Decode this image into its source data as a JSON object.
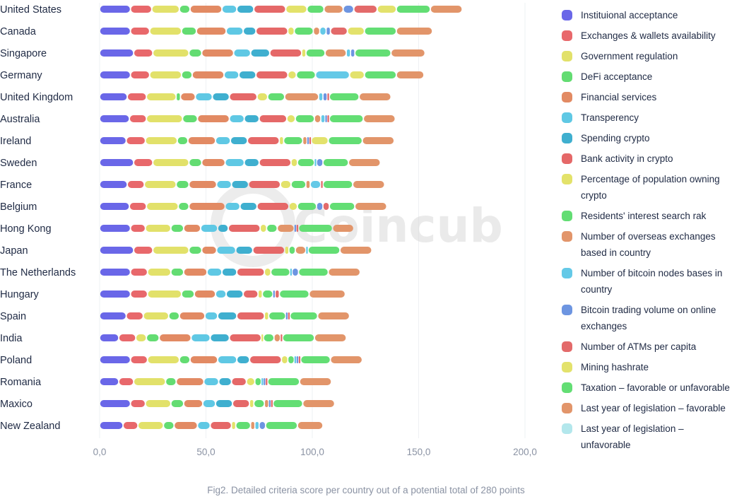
{
  "chart_data": {
    "type": "bar",
    "orientation": "horizontal",
    "stacked": true,
    "caption": "Fig2. Detailed criteria score per country out of a potential total of 280 points",
    "watermark": "Coincub",
    "xlim": [
      0,
      200
    ],
    "xticks": [
      0,
      50,
      100,
      150,
      200
    ],
    "xtick_labels": [
      "0,0",
      "50,0",
      "100,0",
      "150,0",
      "200,0"
    ],
    "grid": "vertical",
    "legend_position": "right",
    "categories": [
      "United States",
      "Canada",
      "Singapore",
      "Germany",
      "United Kingdom",
      "Australia",
      "Ireland",
      "Sweden",
      "France",
      "Belgium",
      "Hong Kong",
      "Japan",
      "The Netherlands",
      "Hungary",
      "Spain",
      "India",
      "Poland",
      "Romania",
      "Maxico",
      "New Zealand"
    ],
    "series": [
      {
        "name": "Instituional acceptance",
        "color": "#6a67e8",
        "values": [
          14.5,
          14.5,
          16,
          14.5,
          13,
          14,
          12.5,
          16,
          13,
          14,
          14.5,
          16,
          14.5,
          14.5,
          12.5,
          9,
          14.5,
          9,
          14.5,
          11
        ]
      },
      {
        "name": "Exchanges & wallets availability",
        "color": "#e8686b",
        "values": [
          10,
          9,
          9,
          9,
          9,
          8,
          9,
          9,
          8,
          8,
          7,
          9,
          8,
          8,
          8,
          8,
          8,
          7,
          7,
          7
        ]
      },
      {
        "name": "Government regulation",
        "color": "#e2e16a",
        "values": [
          13,
          15,
          17,
          15,
          14,
          17,
          15,
          17,
          15,
          15,
          12,
          17,
          11,
          16,
          12,
          5,
          15,
          15,
          12,
          12
        ]
      },
      {
        "name": "DeFi acceptance",
        "color": "#63dc72",
        "values": [
          5,
          7,
          6,
          5,
          2,
          7,
          5,
          6,
          6,
          5,
          6,
          6,
          6,
          6,
          5,
          6,
          5,
          5,
          6,
          5
        ]
      },
      {
        "name": "Financial services",
        "color": "#e28a63",
        "values": [
          15,
          14,
          15,
          15,
          7,
          15,
          13,
          11,
          13,
          17,
          8,
          7,
          11,
          10,
          12,
          15,
          13,
          13,
          9,
          11
        ]
      },
      {
        "name": "Transperency",
        "color": "#5fc8e4",
        "values": [
          7,
          8,
          8,
          7,
          8,
          7,
          7,
          9,
          7,
          7,
          8,
          9,
          7,
          5,
          6,
          9,
          9,
          7,
          6,
          6
        ]
      },
      {
        "name": "Spending crypto",
        "color": "#3fafcf",
        "values": [
          8,
          6,
          9,
          8,
          8,
          7,
          8,
          7,
          8,
          8,
          5,
          8,
          7,
          8,
          9,
          9,
          6,
          6,
          8,
          0
        ]
      },
      {
        "name": "Bank activity in crypto",
        "color": "#e56868",
        "values": [
          15,
          15,
          15,
          15,
          13,
          13,
          15,
          15,
          15,
          15,
          15,
          15,
          13,
          7,
          13,
          15,
          15,
          7,
          8,
          10
        ]
      },
      {
        "name": "Percentage of population owning crypto",
        "color": "#e3e26a",
        "values": [
          10,
          3,
          2,
          4,
          5,
          4,
          2,
          3,
          5,
          4,
          3,
          2,
          3,
          2,
          2,
          1,
          3,
          4,
          2,
          2
        ]
      },
      {
        "name": "Residents' interest search rak",
        "color": "#62dd73",
        "values": [
          8,
          9,
          9,
          9,
          8,
          9,
          9,
          8,
          7,
          9,
          5,
          3,
          9,
          5,
          8,
          5,
          3,
          3,
          5,
          7
        ]
      },
      {
        "name": "Number of overseas exchanges based in country",
        "color": "#e2956a",
        "values": [
          9,
          3,
          10,
          0,
          16,
          3,
          2,
          0,
          2,
          0,
          8,
          5,
          0,
          0,
          0,
          3,
          0,
          0,
          2,
          2
        ]
      },
      {
        "name": "Number of bitcoin nodes bases in country",
        "color": "#64c9e7",
        "values": [
          0,
          3,
          2,
          16,
          2,
          2,
          0,
          1,
          5,
          0,
          0,
          1,
          1,
          0,
          0,
          0,
          1,
          1,
          0,
          2
        ]
      },
      {
        "name": "Bitcoin trading volume on online exchanges",
        "color": "#6d95e1",
        "values": [
          5,
          2,
          2,
          0,
          2,
          1,
          1,
          3,
          0,
          3,
          1,
          0,
          3,
          1,
          1,
          0,
          1,
          1,
          1,
          3
        ]
      },
      {
        "name": "Number of ATMs per capita",
        "color": "#e36a6a",
        "values": [
          11,
          8,
          0,
          0,
          1,
          1,
          1,
          0,
          1,
          3,
          1,
          0,
          0,
          2,
          1,
          1,
          1,
          1,
          1,
          0
        ]
      },
      {
        "name": "Mining hashrate",
        "color": "#e3e26c",
        "values": [
          9,
          8,
          0,
          7,
          0,
          0,
          8,
          0,
          0,
          0,
          0,
          0,
          0,
          0,
          0,
          0,
          0,
          0,
          0,
          0
        ]
      },
      {
        "name": "Taxation – favorable or unfavorable",
        "color": "#63de74",
        "values": [
          16,
          15,
          17,
          15,
          14,
          16,
          16,
          12,
          14,
          12,
          16,
          15,
          14,
          14,
          13,
          15,
          14,
          15,
          14,
          15
        ]
      },
      {
        "name": "Last year of legislation – favorable",
        "color": "#e2956a",
        "values": [
          15,
          17,
          16,
          13,
          15,
          15,
          15,
          15,
          15,
          15,
          10,
          15,
          15,
          17,
          15,
          15,
          15,
          15,
          15,
          12
        ]
      },
      {
        "name": "Last year of legislation – unfavorable",
        "color": "#b3e7ec",
        "values": [
          0,
          0,
          0,
          0,
          0,
          0,
          0,
          0,
          0,
          0,
          0,
          0,
          0,
          0,
          0,
          0,
          0,
          0,
          0,
          0
        ]
      }
    ]
  }
}
